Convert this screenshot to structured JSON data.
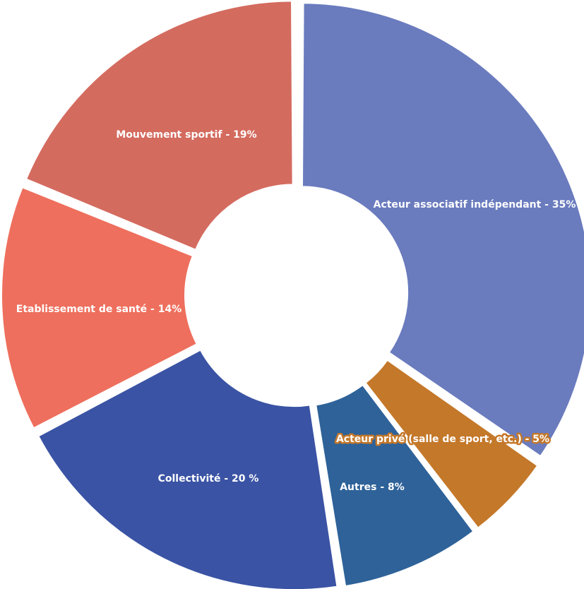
{
  "chart_data": {
    "type": "pie",
    "style": "donut",
    "slices": [
      {
        "label": "Acteur associatif indépendant - 35%",
        "value": 35,
        "color": "#6A7BBE"
      },
      {
        "label": "Acteur privé (salle de sport, etc.) - 5%",
        "value": 5,
        "color": "#C4782A"
      },
      {
        "label": "Autres - 8%",
        "value": 8,
        "color": "#2E6299"
      },
      {
        "label": "Collectivité - 20 %",
        "value": 20,
        "color": "#3A53A4"
      },
      {
        "label": "Etablissement de santé - 14%",
        "value": 14,
        "color": "#EE6F5D"
      },
      {
        "label": "Mouvement sportif - 19%",
        "value": 19,
        "color": "#D46B5F"
      }
    ]
  }
}
